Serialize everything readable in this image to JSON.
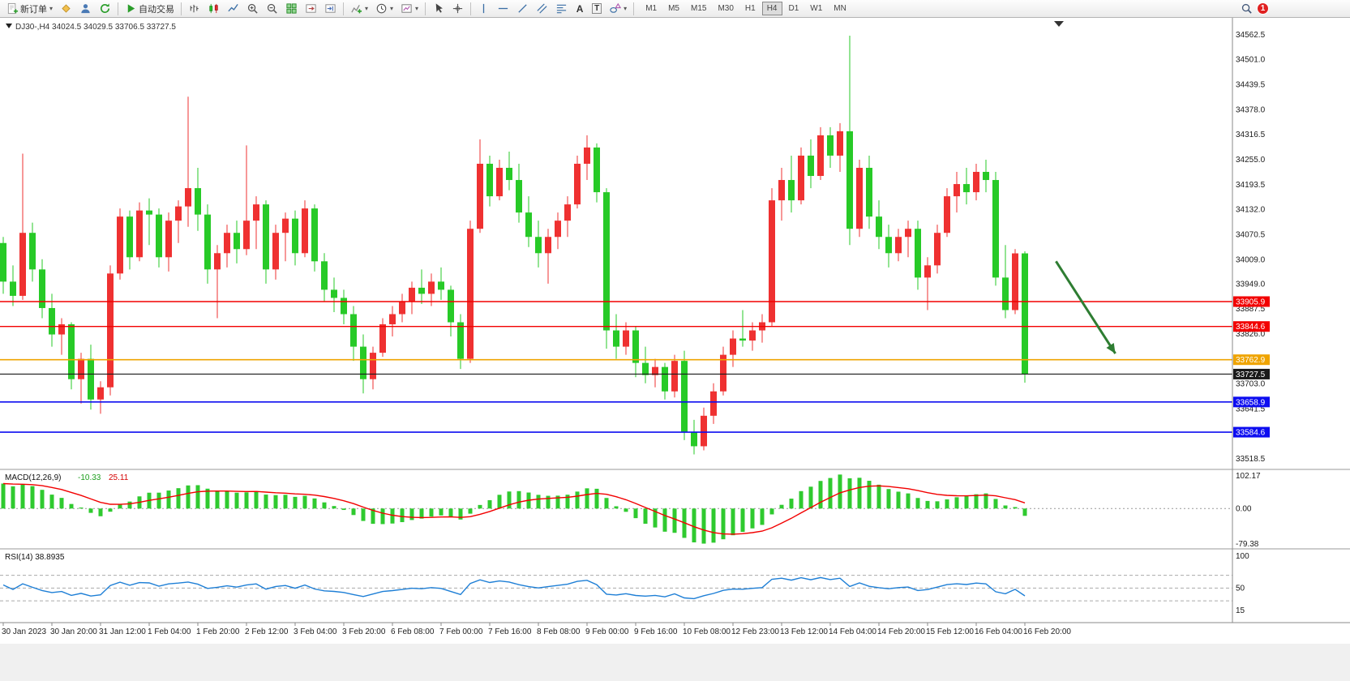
{
  "toolbar": {
    "new_order": "新订单",
    "autotrading": "自动交易",
    "timeframes": [
      "M1",
      "M5",
      "M15",
      "M30",
      "H1",
      "H4",
      "D1",
      "W1",
      "MN"
    ],
    "active_timeframe": "H4",
    "notification_count": "1"
  },
  "chart_title": {
    "symbol_period": "DJ30-,H4",
    "ohlc": "34024.5 34029.5 33706.5 33727.5"
  },
  "price_axis_labels": [
    "34562.5",
    "34501.0",
    "34439.5",
    "34378.0",
    "34316.5",
    "34255.0",
    "34193.5",
    "34132.0",
    "34070.5",
    "34009.0",
    "33949.0",
    "33887.5",
    "33826.0",
    "33703.0",
    "33641.5",
    "33518.5"
  ],
  "hlines": [
    {
      "price": 33905.9,
      "label": "33905.9",
      "color": "#f20000",
      "width": 1.4
    },
    {
      "price": 33844.6,
      "label": "33844.6",
      "color": "#f20000",
      "width": 1.4
    },
    {
      "price": 33762.9,
      "label": "33762.9",
      "color": "#efa400",
      "width": 1.6
    },
    {
      "price": 33727.5,
      "label": "33727.5",
      "color": "#1a1a1a",
      "width": 1.1
    },
    {
      "price": 33658.9,
      "label": "33658.9",
      "color": "#0d0df0",
      "width": 1.7
    },
    {
      "price": 33584.6,
      "label": "33584.6",
      "color": "#0d0df0",
      "width": 1.7
    }
  ],
  "chart_data": {
    "type": "candlestick",
    "symbol": "DJ30-",
    "timeframe": "H4",
    "up_color": "#ef3131",
    "down_color": "#27ca27",
    "y_range": {
      "min": 33495,
      "max": 34600
    },
    "candles_ohlc": [
      [
        34050,
        34065,
        33925,
        33955
      ],
      [
        33955,
        33995,
        33895,
        33920
      ],
      [
        33920,
        34270,
        33910,
        34075
      ],
      [
        34075,
        34100,
        33955,
        33985
      ],
      [
        33985,
        34010,
        33865,
        33890
      ],
      [
        33890,
        33925,
        33795,
        33825
      ],
      [
        33825,
        33865,
        33775,
        33850
      ],
      [
        33850,
        33855,
        33690,
        33715
      ],
      [
        33715,
        33780,
        33655,
        33765
      ],
      [
        33765,
        33800,
        33640,
        33665
      ],
      [
        33665,
        33710,
        33630,
        33695
      ],
      [
        33695,
        33995,
        33675,
        33975
      ],
      [
        33975,
        34135,
        33960,
        34115
      ],
      [
        34115,
        34130,
        33985,
        34015
      ],
      [
        34015,
        34150,
        34005,
        34130
      ],
      [
        34130,
        34160,
        34045,
        34120
      ],
      [
        34120,
        34135,
        33990,
        34015
      ],
      [
        34015,
        34125,
        33980,
        34105
      ],
      [
        34105,
        34155,
        34050,
        34140
      ],
      [
        34140,
        34410,
        34090,
        34185
      ],
      [
        34185,
        34235,
        34080,
        34120
      ],
      [
        34120,
        34145,
        33950,
        33985
      ],
      [
        33985,
        34045,
        33865,
        34025
      ],
      [
        34025,
        34095,
        33990,
        34075
      ],
      [
        34075,
        34105,
        34000,
        34035
      ],
      [
        34035,
        34290,
        34020,
        34105
      ],
      [
        34105,
        34165,
        34035,
        34145
      ],
      [
        34145,
        34155,
        33950,
        33985
      ],
      [
        33985,
        34095,
        33960,
        34075
      ],
      [
        34075,
        34125,
        34005,
        34110
      ],
      [
        34110,
        34130,
        33995,
        34025
      ],
      [
        34025,
        34155,
        34015,
        34135
      ],
      [
        34135,
        34145,
        33980,
        34005
      ],
      [
        34005,
        34025,
        33905,
        33935
      ],
      [
        33935,
        33965,
        33880,
        33915
      ],
      [
        33915,
        33935,
        33850,
        33875
      ],
      [
        33875,
        33895,
        33760,
        33795
      ],
      [
        33795,
        33825,
        33680,
        33715
      ],
      [
        33715,
        33795,
        33690,
        33780
      ],
      [
        33780,
        33865,
        33770,
        33850
      ],
      [
        33850,
        33895,
        33820,
        33875
      ],
      [
        33875,
        33925,
        33855,
        33905
      ],
      [
        33905,
        33955,
        33875,
        33940
      ],
      [
        33940,
        33985,
        33900,
        33925
      ],
      [
        33925,
        33975,
        33895,
        33955
      ],
      [
        33955,
        33990,
        33910,
        33935
      ],
      [
        33935,
        33945,
        33820,
        33855
      ],
      [
        33855,
        33875,
        33740,
        33765
      ],
      [
        33765,
        34105,
        33755,
        34085
      ],
      [
        34085,
        34305,
        34075,
        34245
      ],
      [
        34245,
        34265,
        34140,
        34165
      ],
      [
        34165,
        34255,
        34155,
        34235
      ],
      [
        34235,
        34275,
        34180,
        34205
      ],
      [
        34205,
        34245,
        34100,
        34125
      ],
      [
        34125,
        34165,
        34040,
        34065
      ],
      [
        34065,
        34105,
        33990,
        34025
      ],
      [
        34025,
        34085,
        33950,
        34065
      ],
      [
        34065,
        34125,
        34035,
        34105
      ],
      [
        34105,
        34165,
        34065,
        34145
      ],
      [
        34145,
        34265,
        34135,
        34245
      ],
      [
        34245,
        34315,
        34205,
        34285
      ],
      [
        34285,
        34295,
        34150,
        34175
      ],
      [
        34175,
        34185,
        33790,
        33835
      ],
      [
        33835,
        33875,
        33765,
        33795
      ],
      [
        33795,
        33855,
        33775,
        33835
      ],
      [
        33835,
        33845,
        33720,
        33755
      ],
      [
        33755,
        33795,
        33705,
        33725
      ],
      [
        33725,
        33765,
        33695,
        33745
      ],
      [
        33745,
        33755,
        33665,
        33685
      ],
      [
        33685,
        33775,
        33670,
        33760
      ],
      [
        33760,
        33785,
        33565,
        33585
      ],
      [
        33585,
        33615,
        33530,
        33550
      ],
      [
        33550,
        33645,
        33540,
        33625
      ],
      [
        33625,
        33705,
        33605,
        33685
      ],
      [
        33685,
        33795,
        33675,
        33775
      ],
      [
        33775,
        33835,
        33745,
        33815
      ],
      [
        33815,
        33885,
        33795,
        33810
      ],
      [
        33810,
        33855,
        33785,
        33835
      ],
      [
        33835,
        33875,
        33805,
        33855
      ],
      [
        33855,
        34185,
        33845,
        34155
      ],
      [
        34155,
        34235,
        34105,
        34205
      ],
      [
        34205,
        34265,
        34125,
        34155
      ],
      [
        34155,
        34285,
        34145,
        34265
      ],
      [
        34265,
        34305,
        34185,
        34215
      ],
      [
        34215,
        34335,
        34205,
        34315
      ],
      [
        34315,
        34335,
        34235,
        34265
      ],
      [
        34265,
        34345,
        34225,
        34325
      ],
      [
        34325,
        34560,
        34045,
        34085
      ],
      [
        34085,
        34255,
        34065,
        34235
      ],
      [
        34235,
        34265,
        34085,
        34115
      ],
      [
        34115,
        34155,
        34035,
        34065
      ],
      [
        34065,
        34095,
        33990,
        34025
      ],
      [
        34025,
        34085,
        34005,
        34065
      ],
      [
        34065,
        34105,
        34015,
        34085
      ],
      [
        34085,
        34105,
        33935,
        33965
      ],
      [
        33965,
        34015,
        33885,
        33995
      ],
      [
        33995,
        34095,
        33975,
        34075
      ],
      [
        34075,
        34185,
        34065,
        34165
      ],
      [
        34165,
        34225,
        34125,
        34195
      ],
      [
        34195,
        34235,
        34145,
        34175
      ],
      [
        34175,
        34245,
        34155,
        34225
      ],
      [
        34225,
        34255,
        34175,
        34205
      ],
      [
        34205,
        34225,
        33945,
        33965
      ],
      [
        33965,
        34045,
        33865,
        33885
      ],
      [
        33885,
        34035,
        33875,
        34024.5
      ],
      [
        34024.5,
        34029.5,
        33706.5,
        33727.5
      ]
    ],
    "time_labels": [
      [
        0,
        "30 Jan 2023"
      ],
      [
        5,
        "30 Jan 20:00"
      ],
      [
        10,
        "31 Jan 12:00"
      ],
      [
        15,
        "1 Feb 04:00"
      ],
      [
        20,
        "1 Feb 20:00"
      ],
      [
        25,
        "2 Feb 12:00"
      ],
      [
        30,
        "3 Feb 04:00"
      ],
      [
        35,
        "3 Feb 20:00"
      ],
      [
        40,
        "6 Feb 08:00"
      ],
      [
        45,
        "7 Feb 00:00"
      ],
      [
        50,
        "7 Feb 16:00"
      ],
      [
        55,
        "8 Feb 08:00"
      ],
      [
        60,
        "9 Feb 00:00"
      ],
      [
        65,
        "9 Feb 16:00"
      ],
      [
        70,
        "10 Feb 08:00"
      ],
      [
        75,
        "12 Feb 23:00"
      ],
      [
        80,
        "13 Feb 12:00"
      ],
      [
        85,
        "14 Feb 04:00"
      ],
      [
        90,
        "14 Feb 20:00"
      ],
      [
        95,
        "15 Feb 12:00"
      ],
      [
        100,
        "16 Feb 04:00"
      ],
      [
        105,
        "16 Feb 20:00"
      ]
    ]
  },
  "macd_panel": {
    "name": "MACD(12,26,9)",
    "value_main": "-10.33",
    "value_signal": "25.11",
    "scale_top": "102.17",
    "scale_zero": "0.00",
    "scale_bottom": "-79.38",
    "histogram_color": "#2fca2f",
    "signal_color": "#f20000",
    "params": {
      "fast": 12,
      "slow": 26,
      "signal": 9
    }
  },
  "rsi_panel": {
    "name": "RSI(14)",
    "value": "38.8935",
    "line_color": "#1e7fd6",
    "scale_labels": [
      {
        "v": 100,
        "t": "100"
      },
      {
        "v": 50,
        "t": "50"
      },
      {
        "v": 15,
        "t": "15"
      }
    ],
    "level_lines": [
      70,
      50,
      30
    ]
  },
  "annotation_arrow": {
    "color": "#2e7d32",
    "bar1": 108.2,
    "price1": 34005,
    "bar2": 114.3,
    "price2": 33778
  }
}
